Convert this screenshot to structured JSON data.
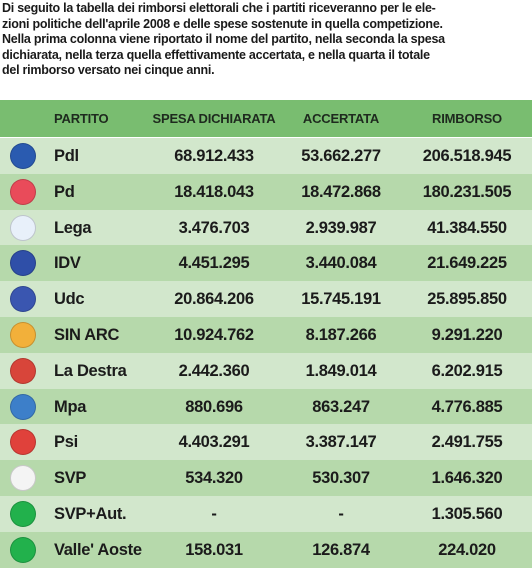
{
  "intro": "Di seguito la tabella dei rimborsi elettorali che i partiti riceveranno per le ele-\nzioni politiche dell'aprile 2008 e delle spese sostenute in quella competizione.\nNella prima colonna viene riportato il nome del partito, nella seconda la spesa\ndichiarata, nella terza quella effettivamente accertata, e nella quarta il totale\ndel rimborso versato nei cinque anni.",
  "headers": {
    "partito": "PARTITO",
    "spesa": "SPESA DICHIARATA",
    "accertata": "ACCERTATA",
    "rimborso": "RIMBORSO"
  },
  "rows": [
    {
      "party": "Pdl",
      "spesa": "68.912.433",
      "accertata": "53.662.277",
      "rimborso": "206.518.945",
      "logo": "pdl-logo",
      "color": "#2a5bb0"
    },
    {
      "party": "Pd",
      "spesa": "18.418.043",
      "accertata": "18.472.868",
      "rimborso": "180.231.505",
      "logo": "pd-logo",
      "color": "#e94b5a"
    },
    {
      "party": "Lega",
      "spesa": "3.476.703",
      "accertata": "2.939.987",
      "rimborso": "41.384.550",
      "logo": "lega-logo",
      "color": "#e8f0fa"
    },
    {
      "party": "IDV",
      "spesa": "4.451.295",
      "accertata": "3.440.084",
      "rimborso": "21.649.225",
      "logo": "idv-logo",
      "color": "#2f4fa8"
    },
    {
      "party": "Udc",
      "spesa": "20.864.206",
      "accertata": "15.745.191",
      "rimborso": "25.895.850",
      "logo": "udc-logo",
      "color": "#3a56b0"
    },
    {
      "party": "SIN ARC",
      "spesa": "10.924.762",
      "accertata": "8.187.266",
      "rimborso": "9.291.220",
      "logo": "sinistra-arcobaleno-logo",
      "color": "#f2b03a"
    },
    {
      "party": "La Destra",
      "spesa": "2.442.360",
      "accertata": "1.849.014",
      "rimborso": "6.202.915",
      "logo": "la-destra-logo",
      "color": "#d8453a"
    },
    {
      "party": "Mpa",
      "spesa": "880.696",
      "accertata": "863.247",
      "rimborso": "4.776.885",
      "logo": "mpa-logo",
      "color": "#3d7fc9"
    },
    {
      "party": "Psi",
      "spesa": "4.403.291",
      "accertata": "3.387.147",
      "rimborso": "2.491.755",
      "logo": "psi-logo",
      "color": "#e0413b"
    },
    {
      "party": "SVP",
      "spesa": "534.320",
      "accertata": "530.307",
      "rimborso": "1.646.320",
      "logo": "svp-logo",
      "color": "#f4f4f4"
    },
    {
      "party": "SVP+Aut.",
      "spesa": "-",
      "accertata": "-",
      "rimborso": "1.305.560",
      "logo": "svp-aut-logo",
      "color": "#22b14c"
    },
    {
      "party": "Valle' Aoste",
      "spesa": "158.031",
      "accertata": "126.874",
      "rimborso": "224.020",
      "logo": "valle-aoste-logo",
      "color": "#22b14c"
    }
  ]
}
